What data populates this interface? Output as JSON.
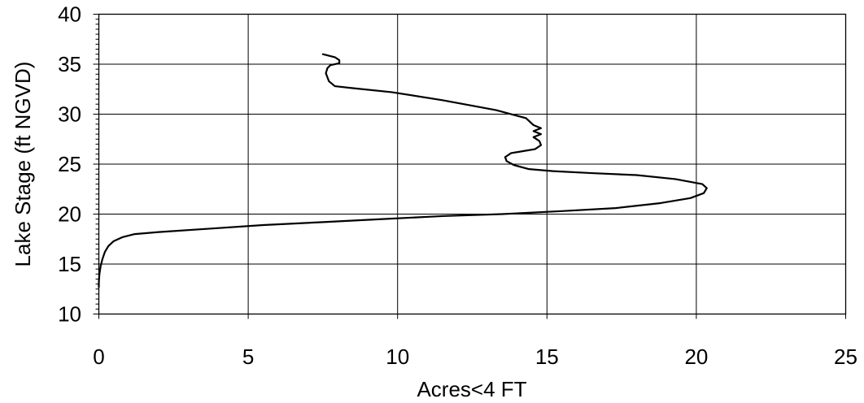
{
  "chart_data": {
    "type": "line",
    "xlabel": "Acres<4 FT",
    "ylabel": "Lake Stage (ft NGVD)",
    "xlim": [
      0,
      25
    ],
    "ylim": [
      10,
      40
    ],
    "x_ticks": [
      "0",
      "5",
      "10",
      "15",
      "20",
      "25"
    ],
    "y_ticks": [
      "10",
      "15",
      "20",
      "25",
      "30",
      "35",
      "40"
    ],
    "grid": true,
    "legend": "none",
    "line_color": "#000000",
    "series": [
      {
        "x": [
          0.0,
          0.0,
          0.02,
          0.06,
          0.12,
          0.2,
          0.32,
          0.5,
          0.8,
          1.2,
          2.0,
          3.5,
          5.5,
          7.5,
          9.5,
          11.5,
          13.5,
          15.5,
          17.3,
          18.8,
          19.8,
          20.25,
          20.35,
          20.2,
          19.3,
          18.0,
          16.5,
          15.2,
          14.4,
          13.9,
          13.65,
          13.6,
          13.8,
          14.2,
          14.6,
          14.8,
          14.75,
          14.55,
          14.8,
          14.55,
          14.8,
          14.55,
          14.3,
          13.3,
          11.5,
          9.8,
          8.5,
          7.9,
          7.7,
          7.65,
          7.6,
          7.65,
          7.75,
          8.05,
          8.05,
          7.9,
          7.5
        ],
        "y": [
          12.7,
          13.2,
          14.0,
          14.8,
          15.5,
          16.2,
          16.8,
          17.3,
          17.7,
          18.0,
          18.2,
          18.5,
          18.9,
          19.2,
          19.5,
          19.8,
          20.0,
          20.3,
          20.6,
          21.1,
          21.6,
          22.1,
          22.6,
          23.0,
          23.5,
          23.9,
          24.1,
          24.3,
          24.5,
          24.9,
          25.3,
          25.7,
          26.1,
          26.3,
          26.5,
          26.9,
          27.3,
          27.7,
          28.0,
          28.3,
          28.6,
          28.9,
          29.6,
          30.4,
          31.4,
          32.2,
          32.6,
          32.8,
          33.3,
          33.7,
          34.1,
          34.6,
          34.9,
          35.1,
          35.4,
          35.7,
          36.0
        ]
      }
    ]
  }
}
